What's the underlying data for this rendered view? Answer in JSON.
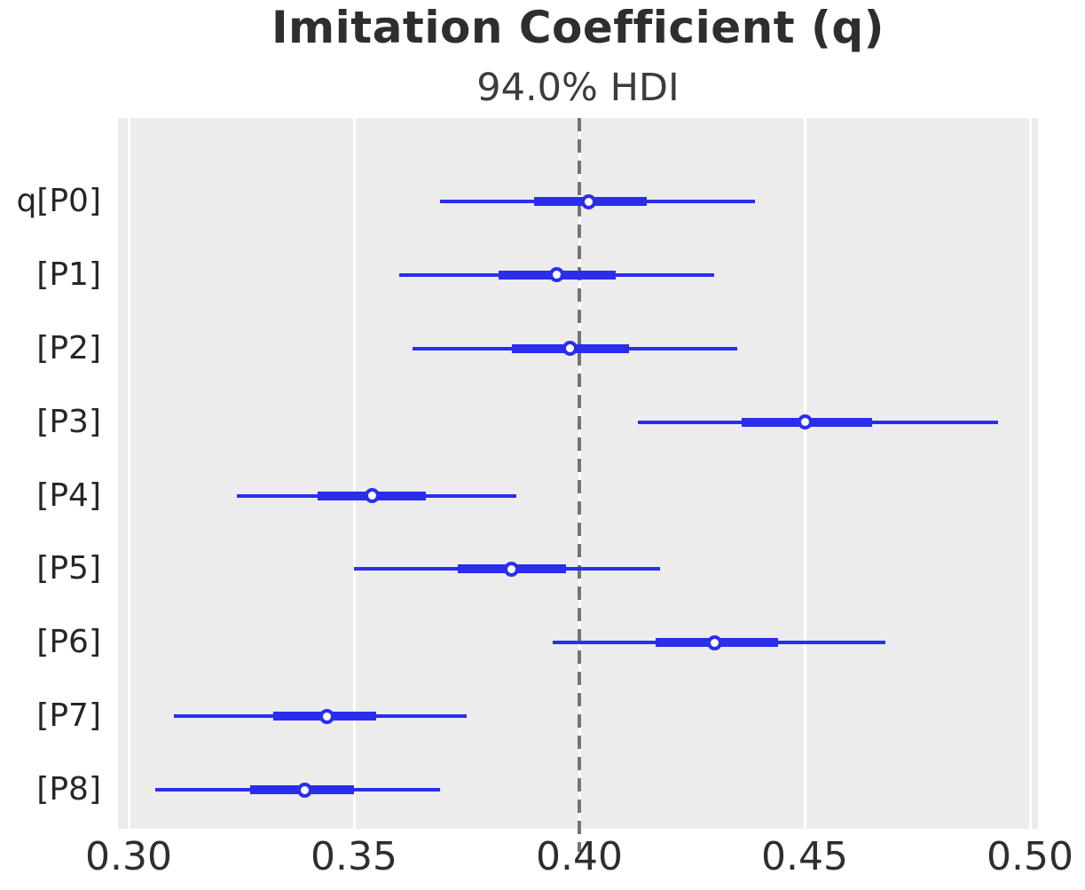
{
  "title": "Imitation Coefficient (q)",
  "subtitle": "94.0% HDI",
  "colors": {
    "interval_blue": "#2a2eec",
    "plot_background": "#ececec",
    "gridline_white": "#ffffff",
    "reference_line_gray": "#747474",
    "text_dark": "#2e2e2e"
  },
  "chart_data": {
    "type": "forest",
    "title": "Imitation Coefficient (q)",
    "subtitle": "94.0% HDI",
    "hdi_probability": "94.0%",
    "xlabel": "",
    "ylabel": "",
    "xlim": [
      0.298,
      0.502
    ],
    "grid": true,
    "legend": false,
    "reference_line_x": 0.4,
    "reference_line_style": "dashed",
    "x_ticks": [
      0.3,
      0.35,
      0.4,
      0.45,
      0.5
    ],
    "x_tick_labels": [
      "0.30",
      "0.35",
      "0.40",
      "0.45",
      "0.50"
    ],
    "rows": [
      {
        "label": "q[P0]",
        "hdi_low": 0.369,
        "band_low": 0.39,
        "point": 0.402,
        "band_high": 0.415,
        "hdi_high": 0.439
      },
      {
        "label": "[P1]",
        "hdi_low": 0.36,
        "band_low": 0.382,
        "point": 0.395,
        "band_high": 0.408,
        "hdi_high": 0.43
      },
      {
        "label": "[P2]",
        "hdi_low": 0.363,
        "band_low": 0.385,
        "point": 0.398,
        "band_high": 0.411,
        "hdi_high": 0.435
      },
      {
        "label": "[P3]",
        "hdi_low": 0.413,
        "band_low": 0.436,
        "point": 0.45,
        "band_high": 0.465,
        "hdi_high": 0.493
      },
      {
        "label": "[P4]",
        "hdi_low": 0.324,
        "band_low": 0.342,
        "point": 0.354,
        "band_high": 0.366,
        "hdi_high": 0.386
      },
      {
        "label": "[P5]",
        "hdi_low": 0.35,
        "band_low": 0.373,
        "point": 0.385,
        "band_high": 0.397,
        "hdi_high": 0.418
      },
      {
        "label": "[P6]",
        "hdi_low": 0.394,
        "band_low": 0.417,
        "point": 0.43,
        "band_high": 0.444,
        "hdi_high": 0.468
      },
      {
        "label": "[P7]",
        "hdi_low": 0.31,
        "band_low": 0.332,
        "point": 0.344,
        "band_high": 0.355,
        "hdi_high": 0.375
      },
      {
        "label": "[P8]",
        "hdi_low": 0.306,
        "band_low": 0.327,
        "point": 0.339,
        "band_high": 0.35,
        "hdi_high": 0.369
      }
    ]
  }
}
